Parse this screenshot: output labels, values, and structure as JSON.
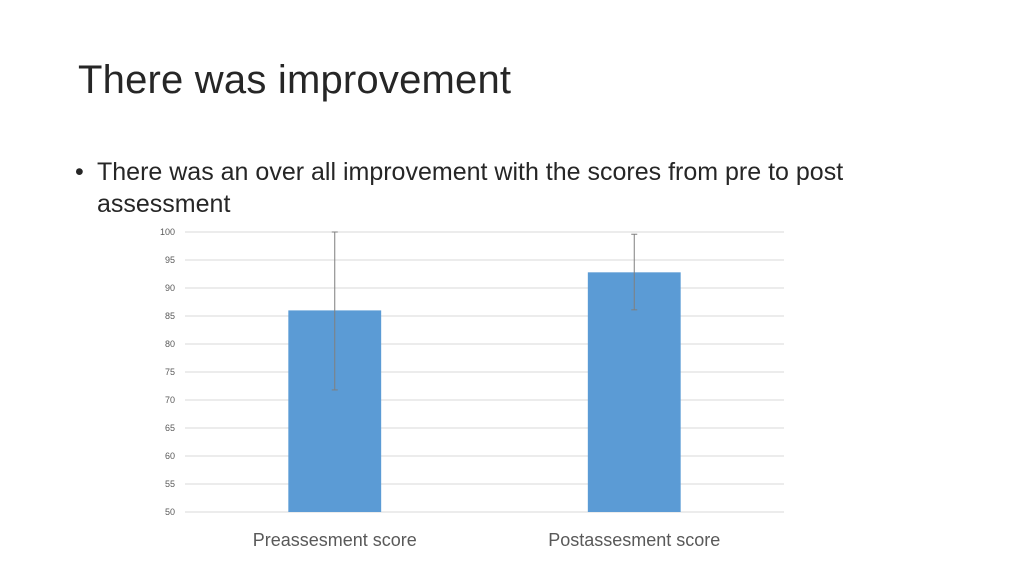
{
  "slide": {
    "title": "There was improvement",
    "bullets": [
      "There was an over all improvement with the scores from pre to post assessment"
    ],
    "bullet_char": "•"
  },
  "chart_data": {
    "type": "bar",
    "categories": [
      "Preassesment score",
      "Postassesment score"
    ],
    "values": [
      86,
      92.8
    ],
    "error_bars": [
      {
        "low": 71.8,
        "high": 100
      },
      {
        "low": 86.1,
        "high": 99.6
      }
    ],
    "title": "",
    "xlabel": "",
    "ylabel": "",
    "ylim": [
      50,
      100
    ],
    "yticks": [
      50,
      55,
      60,
      65,
      70,
      75,
      80,
      85,
      90,
      95,
      100
    ],
    "grid": true,
    "legend": "none",
    "colors": {
      "bar": "#5B9BD5",
      "grid": "#D9D9D9",
      "error": "#7F7F7F"
    }
  }
}
